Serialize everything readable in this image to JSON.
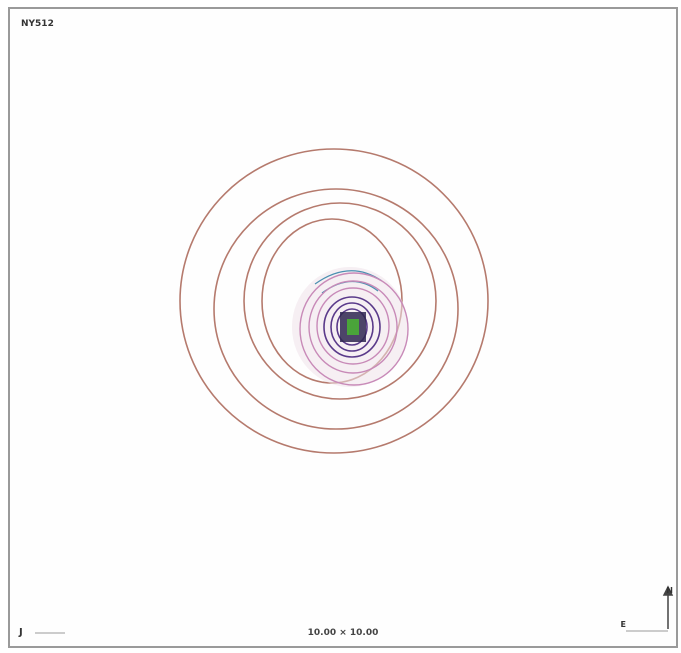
{
  "object_name": "NY512",
  "field_of_view": "10.00 × 10.00",
  "band": "J",
  "compass": {
    "north": "N",
    "east": "E"
  },
  "colors": {
    "frame": "#9a9a9a",
    "contours_outer": "#b57a6d",
    "contours_mid": "#c88ab8",
    "contours_inner": "#5a3a8a",
    "core": "#4aa43a"
  }
}
